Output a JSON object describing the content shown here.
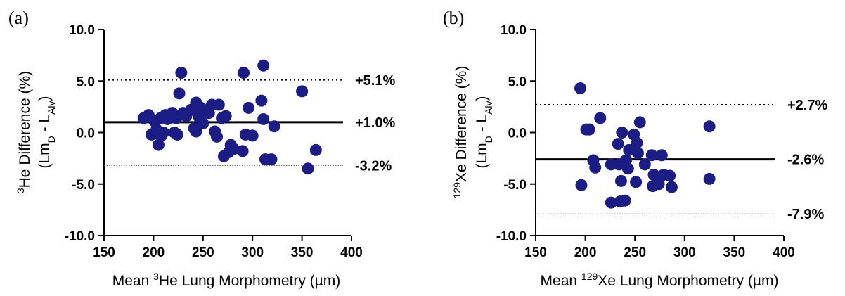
{
  "chart_data": [
    {
      "type": "scatter",
      "panel_label": "(a)",
      "title": "",
      "ylabel": {
        "prefix": "",
        "sup": "3",
        "main": "He Difference (%)",
        "sub_line": {
          "p1": "(Lm",
          "s1": "D",
          "p2": " - L",
          "s2": "Alv",
          "p3": ")"
        }
      },
      "xlabel": {
        "prefix": "Mean ",
        "sup": "3",
        "main": "He Lung Morphometry (µm)"
      },
      "xlim": [
        150,
        400
      ],
      "ylim": [
        -10,
        10
      ],
      "xticks": [
        "150",
        "200",
        "250",
        "300",
        "350",
        "400"
      ],
      "xtick_values": [
        150,
        200,
        250,
        300,
        350,
        400
      ],
      "yticks": [
        "10.0",
        "5.0",
        "0.0",
        "-5.0",
        "-10.0"
      ],
      "ytick_values": [
        10,
        5,
        0,
        -5,
        -10
      ],
      "grid": false,
      "mean_line": {
        "value": 1.0,
        "label": "+1.0%"
      },
      "upper_loa": {
        "value": 5.1,
        "label": "+5.1%"
      },
      "lower_loa": {
        "value": -3.2,
        "label": "-3.2%"
      },
      "color": "#1c1c85",
      "points": [
        [
          190,
          1.4
        ],
        [
          195,
          1.7
        ],
        [
          198,
          -0.2
        ],
        [
          201,
          1.1
        ],
        [
          203,
          0.3
        ],
        [
          205,
          -1.2
        ],
        [
          207,
          1.4
        ],
        [
          208,
          -0.3
        ],
        [
          210,
          0.0
        ],
        [
          212,
          1.7
        ],
        [
          214,
          1.3
        ],
        [
          216,
          1.5
        ],
        [
          219,
          1.9
        ],
        [
          221,
          0.0
        ],
        [
          223,
          1.4
        ],
        [
          224,
          -0.2
        ],
        [
          226,
          3.8
        ],
        [
          228,
          5.8
        ],
        [
          230,
          1.9
        ],
        [
          233,
          1.6
        ],
        [
          238,
          2.2
        ],
        [
          241,
          0.4
        ],
        [
          243,
          0.1
        ],
        [
          243,
          2.9
        ],
        [
          246,
          1.5
        ],
        [
          248,
          2.4
        ],
        [
          250,
          0.9
        ],
        [
          253,
          2.0
        ],
        [
          256,
          1.9
        ],
        [
          259,
          2.7
        ],
        [
          262,
          0.1
        ],
        [
          264,
          -0.4
        ],
        [
          266,
          2.7
        ],
        [
          269,
          1.4
        ],
        [
          271,
          -2.3
        ],
        [
          273,
          1.6
        ],
        [
          276,
          -1.9
        ],
        [
          278,
          -1.2
        ],
        [
          281,
          -1.6
        ],
        [
          290,
          -1.8
        ],
        [
          291,
          5.8
        ],
        [
          293,
          -0.2
        ],
        [
          296,
          2.4
        ],
        [
          300,
          -0.3
        ],
        [
          309,
          3.1
        ],
        [
          311,
          1.3
        ],
        [
          311,
          6.5
        ],
        [
          313,
          -2.6
        ],
        [
          319,
          -2.6
        ],
        [
          322,
          0.6
        ],
        [
          350,
          4.0
        ],
        [
          356,
          -3.5
        ],
        [
          364,
          -1.7
        ]
      ]
    },
    {
      "type": "scatter",
      "panel_label": "(b)",
      "title": "",
      "ylabel": {
        "prefix": "",
        "sup": "129",
        "main": "Xe Difference (%)",
        "sub_line": {
          "p1": "(Lm",
          "s1": "D",
          "p2": " - L",
          "s2": "Alv",
          "p3": ")"
        }
      },
      "xlabel": {
        "prefix": "Mean ",
        "sup": "129",
        "main": "Xe Lung Morphometry (µm)"
      },
      "xlim": [
        150,
        400
      ],
      "ylim": [
        -10,
        10
      ],
      "xticks": [
        "150",
        "200",
        "250",
        "300",
        "350",
        "400"
      ],
      "xtick_values": [
        150,
        200,
        250,
        300,
        350,
        400
      ],
      "yticks": [
        "10.0",
        "5.0",
        "0.0",
        "-5.0",
        "-10.0"
      ],
      "ytick_values": [
        10,
        5,
        0,
        -5,
        -10
      ],
      "grid": false,
      "mean_line": {
        "value": -2.6,
        "label": "-2.6%"
      },
      "upper_loa": {
        "value": 2.7,
        "label": "+2.7%"
      },
      "lower_loa": {
        "value": -7.9,
        "label": "-7.9%"
      },
      "color": "#1c1c85",
      "points": [
        [
          195,
          4.3
        ],
        [
          196,
          -5.1
        ],
        [
          201,
          0.3
        ],
        [
          204,
          0.3
        ],
        [
          208,
          -2.7
        ],
        [
          210,
          -3.4
        ],
        [
          215,
          1.4
        ],
        [
          226,
          -6.8
        ],
        [
          226,
          -3.1
        ],
        [
          233,
          -1.1
        ],
        [
          234,
          -3.1
        ],
        [
          235,
          -6.7
        ],
        [
          236,
          -4.7
        ],
        [
          237,
          0.0
        ],
        [
          240,
          -6.6
        ],
        [
          241,
          -2.7
        ],
        [
          243,
          -3.5
        ],
        [
          244,
          -1.7
        ],
        [
          249,
          -0.2
        ],
        [
          251,
          -4.8
        ],
        [
          252,
          -1.0
        ],
        [
          253,
          -2.0
        ],
        [
          255,
          1.0
        ],
        [
          260,
          -3.1
        ],
        [
          267,
          -2.2
        ],
        [
          268,
          -5.2
        ],
        [
          269,
          -4.1
        ],
        [
          274,
          -5.0
        ],
        [
          277,
          -2.2
        ],
        [
          279,
          -4.1
        ],
        [
          285,
          -4.2
        ],
        [
          287,
          -5.3
        ],
        [
          325,
          0.6
        ],
        [
          325,
          -4.5
        ]
      ]
    }
  ]
}
